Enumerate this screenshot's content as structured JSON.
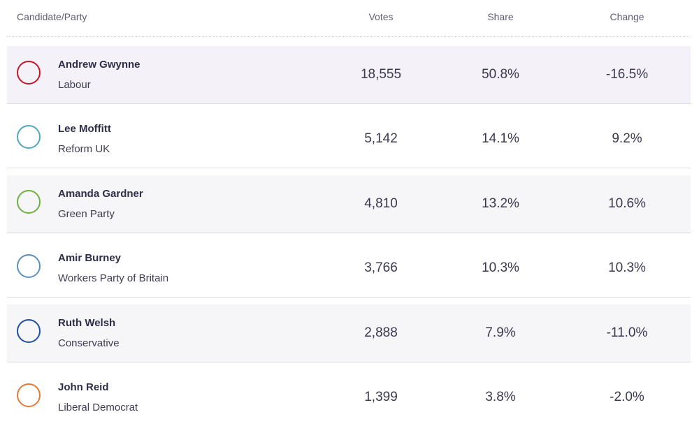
{
  "header": {
    "candidate_party": "Candidate/Party",
    "votes": "Votes",
    "share": "Share",
    "change": "Change"
  },
  "rows": [
    {
      "name": "Andrew Gwynne",
      "party": "Labour",
      "votes": "18,555",
      "share": "50.8%",
      "change": "-16.5%",
      "color": "#c0182a"
    },
    {
      "name": "Lee Moffitt",
      "party": "Reform UK",
      "votes": "5,142",
      "share": "14.1%",
      "change": "9.2%",
      "color": "#4fa6b9"
    },
    {
      "name": "Amanda Gardner",
      "party": "Green Party",
      "votes": "4,810",
      "share": "13.2%",
      "change": "10.6%",
      "color": "#6fb03e"
    },
    {
      "name": "Amir Burney",
      "party": "Workers Party of Britain",
      "votes": "3,766",
      "share": "10.3%",
      "change": "10.3%",
      "color": "#5b8fbf"
    },
    {
      "name": "Ruth Welsh",
      "party": "Conservative",
      "votes": "2,888",
      "share": "7.9%",
      "change": "-11.0%",
      "color": "#1f4ea1"
    },
    {
      "name": "John Reid",
      "party": "Liberal Democrat",
      "votes": "1,399",
      "share": "3.8%",
      "change": "-2.0%",
      "color": "#e07a38"
    }
  ]
}
